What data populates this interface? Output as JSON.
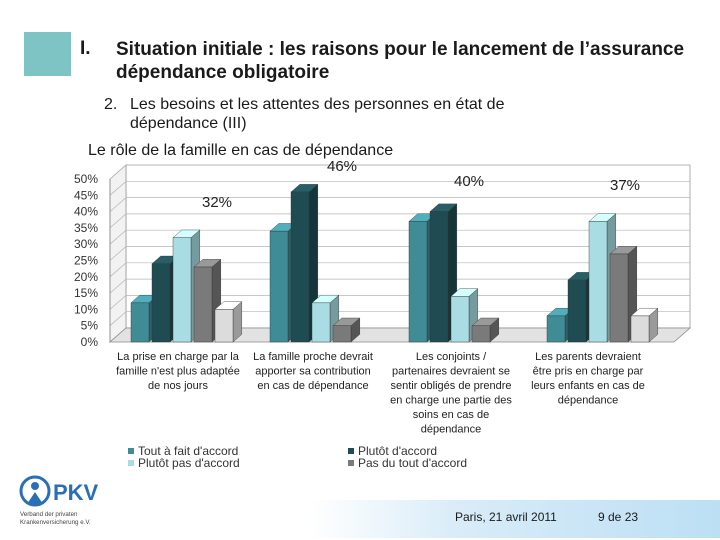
{
  "slide": {
    "section_number": "I.",
    "title": "Situation initiale : les raisons pour le lancement de l’assurance dépendance obligatoire",
    "subtitle_number": "2.",
    "subtitle_line1": "Les besoins et les attentes des personnes en état de",
    "subtitle_line2": "dépendance (III)",
    "chart_heading": "Le rôle de la famille en cas de dépendance"
  },
  "chart_data": {
    "type": "bar",
    "title": "Le rôle de la famille en cas de dépendance",
    "categories": [
      [
        "La prise en charge par la",
        "famille n'est plus adaptée",
        "de nos jours"
      ],
      [
        "La famille proche devrait",
        "apporter sa contribution",
        "en cas de dépendance"
      ],
      [
        "Les conjoints /",
        "partenaires devraient se",
        "sentir obligés de prendre",
        "en charge une partie des",
        "soins en cas de",
        "dépendance"
      ],
      [
        "Les parents devraient",
        "être pris en charge par",
        "leurs enfants en cas de",
        "dépendance"
      ]
    ],
    "series": [
      {
        "name": "Tout à fait d'accord",
        "color": "#3f8c96",
        "values": [
          12,
          34,
          37,
          8
        ]
      },
      {
        "name": "Plutôt d'accord",
        "color": "#1f4c53",
        "values": [
          24,
          46,
          40,
          19
        ]
      },
      {
        "name": "Plutôt pas d'accord",
        "color": "#a9dde3",
        "values": [
          32,
          12,
          14,
          37
        ]
      },
      {
        "name": "Pas du tout d'accord",
        "color": "#7a7a7a",
        "values": [
          23,
          5,
          5,
          27
        ]
      },
      {
        "name": "",
        "color": "#dcdcdc",
        "values": [
          10,
          0,
          0,
          8
        ]
      }
    ],
    "highlight_labels": [
      "32%",
      "46%",
      "40%",
      "37%"
    ],
    "y_ticks": [
      "0%",
      "5%",
      "10%",
      "15%",
      "20%",
      "25%",
      "30%",
      "35%",
      "40%",
      "45%",
      "50%"
    ],
    "ylim": [
      0,
      50
    ],
    "legend_placement": "bottom"
  },
  "legend": {
    "left": [
      {
        "label": "Tout à fait d'accord",
        "color": "#3f8c96"
      },
      {
        "label": "Plutôt pas d'accord",
        "color": "#a9dde3"
      }
    ],
    "right": [
      {
        "label": "Plutôt d'accord",
        "color": "#1f4c53"
      },
      {
        "label": "Pas du tout d'accord",
        "color": "#7a7a7a"
      }
    ]
  },
  "logo": {
    "name": "PKV",
    "line1": "Verband der privaten",
    "line2": "Krankenversicherung e.V."
  },
  "footer": {
    "date": "Paris, 21 avril 2011",
    "page": "9 de 23"
  }
}
